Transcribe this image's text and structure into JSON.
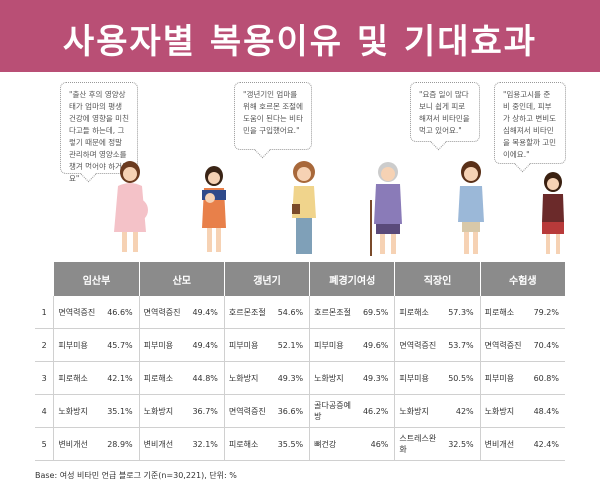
{
  "title": "사용자별 복용이유 및 기대효과",
  "bubbles": [
    {
      "id": "b1",
      "text": "\"출산 후의 영양상태가 엄마의 평생 건강에 영향을 미친다고들 하는데, 그렇기 때문에 정말 관리하며 영양소를 챙겨 먹어야 하거든요\""
    },
    {
      "id": "b2",
      "text": "\"갱년기인 엄마를 위해 호르몬 조절에 도움이 된다는 비타민을 구입했어요.\""
    },
    {
      "id": "b3",
      "text": "\"요즘 일이 많다보니 쉽게 피로해져서 비타민을 먹고 있어요.\""
    },
    {
      "id": "b4",
      "text": "\"임용고시를 준비 중인데, 피부가 상하고 변비도 심해져서 비타민을 복용할까 고민이에요.\""
    }
  ],
  "table": {
    "headers": [
      "임산부",
      "산모",
      "갱년기",
      "폐경기여성",
      "직장인",
      "수험생"
    ],
    "rows": [
      {
        "rank": "1",
        "cells": [
          [
            "면역력증진",
            "46.6%"
          ],
          [
            "면역력증진",
            "49.4%"
          ],
          [
            "호르몬조절",
            "54.6%"
          ],
          [
            "호르몬조절",
            "69.5%"
          ],
          [
            "피로해소",
            "57.3%"
          ],
          [
            "피로해소",
            "79.2%"
          ]
        ]
      },
      {
        "rank": "2",
        "cells": [
          [
            "피부미용",
            "45.7%"
          ],
          [
            "피부미용",
            "49.4%"
          ],
          [
            "피부미용",
            "52.1%"
          ],
          [
            "피부미용",
            "49.6%"
          ],
          [
            "면역력증진",
            "53.7%"
          ],
          [
            "면역력증진",
            "70.4%"
          ]
        ]
      },
      {
        "rank": "3",
        "cells": [
          [
            "피로해소",
            "42.1%"
          ],
          [
            "피로해소",
            "44.8%"
          ],
          [
            "노화방지",
            "49.3%"
          ],
          [
            "노화방지",
            "49.3%"
          ],
          [
            "피부미용",
            "50.5%"
          ],
          [
            "피부미용",
            "60.8%"
          ]
        ]
      },
      {
        "rank": "4",
        "cells": [
          [
            "노화방지",
            "35.1%"
          ],
          [
            "노화방지",
            "36.7%"
          ],
          [
            "면역력증진",
            "36.6%"
          ],
          [
            "골다공증예방",
            "46.2%"
          ],
          [
            "노화방지",
            "42%"
          ],
          [
            "노화방지",
            "48.4%"
          ]
        ]
      },
      {
        "rank": "5",
        "cells": [
          [
            "변비개선",
            "28.9%"
          ],
          [
            "변비개선",
            "32.1%"
          ],
          [
            "피로해소",
            "35.5%"
          ],
          [
            "뼈건강",
            "46%"
          ],
          [
            "스트레스완화",
            "32.5%"
          ],
          [
            "변비개선",
            "42.4%"
          ]
        ]
      }
    ]
  },
  "footer": "Base: 여성 비타민 언급 블로그 기준(n=30,221), 단위: %",
  "colors": {
    "header": "#b94f75",
    "table_header": "#8b8b8b"
  }
}
